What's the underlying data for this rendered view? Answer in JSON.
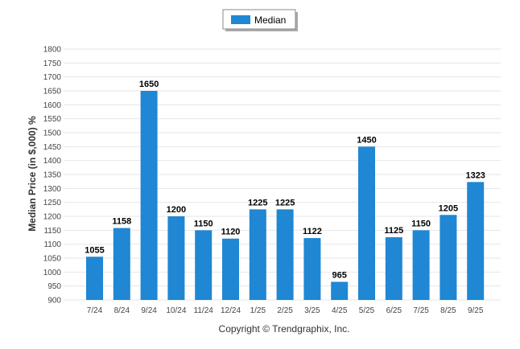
{
  "chart_data": {
    "type": "bar",
    "categories": [
      "7/24",
      "8/24",
      "9/24",
      "10/24",
      "11/24",
      "12/24",
      "1/25",
      "2/25",
      "3/25",
      "4/25",
      "5/25",
      "6/25",
      "7/25",
      "8/25",
      "9/25"
    ],
    "series": [
      {
        "name": "Median",
        "color": "#1f87d3",
        "values": [
          1055,
          1158,
          1650,
          1200,
          1150,
          1120,
          1225,
          1225,
          1122,
          965,
          1450,
          1125,
          1150,
          1205,
          1323
        ]
      }
    ],
    "ylabel": "Median Price (in $,000) %",
    "xlabel": "",
    "ylim": [
      900,
      1800
    ],
    "yticks": [
      900,
      950,
      1000,
      1050,
      1100,
      1150,
      1200,
      1250,
      1300,
      1350,
      1400,
      1450,
      1500,
      1550,
      1600,
      1650,
      1700,
      1750,
      1800
    ],
    "grid": true,
    "legend_position": "top-center",
    "data_labels": true
  },
  "credit": "Copyright © Trendgraphix, Inc."
}
